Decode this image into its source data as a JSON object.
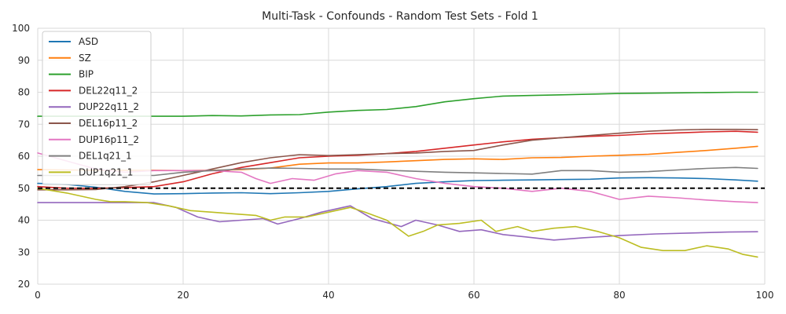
{
  "chart_data": {
    "type": "line",
    "title": "Multi-Task - Confounds - Random Test Sets - Fold 1",
    "xlabel": "",
    "ylabel": "",
    "xlim": [
      0,
      100
    ],
    "ylim": [
      20,
      100
    ],
    "xticks": [
      "0",
      "20",
      "40",
      "60",
      "80",
      "100"
    ],
    "yticks": [
      "20",
      "30",
      "40",
      "50",
      "60",
      "70",
      "80",
      "90",
      "100"
    ],
    "grid": true,
    "legend_position": "top-left",
    "reference_line": {
      "y": 50,
      "style": "dashed",
      "color": "#000000"
    },
    "series": [
      {
        "name": "ASD",
        "color": "#1f77b4",
        "x": [
          0,
          4,
          8,
          12,
          16,
          20,
          24,
          28,
          32,
          36,
          40,
          44,
          48,
          52,
          56,
          60,
          64,
          68,
          72,
          76,
          80,
          84,
          88,
          92,
          96,
          99
        ],
        "y": [
          51.5,
          51.2,
          50.3,
          49.0,
          48.2,
          48.3,
          48.5,
          48.6,
          48.3,
          48.6,
          49.0,
          49.8,
          50.5,
          51.5,
          52.0,
          52.4,
          52.5,
          52.6,
          52.7,
          52.8,
          53.2,
          53.3,
          53.2,
          53.0,
          52.6,
          52.2
        ]
      },
      {
        "name": "SZ",
        "color": "#ff7f0e",
        "x": [
          0,
          4,
          8,
          12,
          16,
          20,
          24,
          28,
          32,
          36,
          40,
          44,
          48,
          52,
          56,
          60,
          64,
          68,
          72,
          76,
          80,
          84,
          88,
          92,
          96,
          99
        ],
        "y": [
          55.8,
          55.7,
          55.6,
          55.6,
          55.6,
          55.5,
          55.6,
          55.8,
          56.3,
          57.5,
          57.9,
          57.9,
          58.2,
          58.6,
          59.0,
          59.2,
          59.0,
          59.5,
          59.6,
          60.0,
          60.3,
          60.6,
          61.2,
          61.8,
          62.5,
          63.1
        ]
      },
      {
        "name": "BIP",
        "color": "#2ca02c",
        "x": [
          0,
          4,
          8,
          12,
          16,
          20,
          24,
          28,
          32,
          36,
          40,
          44,
          48,
          52,
          56,
          60,
          64,
          68,
          72,
          76,
          80,
          84,
          88,
          92,
          96,
          99
        ],
        "y": [
          72.5,
          72.5,
          72.5,
          72.5,
          72.5,
          72.5,
          72.7,
          72.6,
          72.9,
          73.0,
          73.8,
          74.3,
          74.6,
          75.5,
          77.0,
          78.0,
          78.8,
          79.0,
          79.2,
          79.4,
          79.6,
          79.7,
          79.8,
          79.9,
          80.0,
          80.0
        ]
      },
      {
        "name": "DEL22q11_2",
        "color": "#d62728",
        "x": [
          0,
          4,
          8,
          12,
          16,
          20,
          24,
          28,
          32,
          36,
          40,
          44,
          48,
          52,
          56,
          60,
          64,
          68,
          72,
          76,
          80,
          84,
          88,
          92,
          96,
          99
        ],
        "y": [
          50.5,
          50.0,
          50.0,
          50.2,
          50.5,
          52.0,
          54.5,
          56.5,
          58.0,
          59.5,
          60.0,
          60.3,
          60.8,
          61.5,
          62.5,
          63.5,
          64.5,
          65.3,
          65.8,
          66.2,
          66.5,
          67.0,
          67.3,
          67.6,
          67.8,
          67.5
        ]
      },
      {
        "name": "DUP22q11_2",
        "color": "#9467bd",
        "x": [
          0,
          4,
          8,
          12,
          16,
          19,
          22,
          25,
          28,
          31,
          33,
          36,
          39,
          42,
          43,
          46,
          50,
          52,
          55,
          58,
          61,
          64,
          67,
          71,
          75,
          80,
          85,
          90,
          95,
          99
        ],
        "y": [
          45.5,
          45.5,
          45.5,
          45.5,
          45.5,
          44.0,
          41.0,
          39.5,
          40.0,
          40.5,
          38.8,
          40.5,
          42.5,
          44.0,
          44.5,
          40.5,
          38.0,
          40.0,
          38.5,
          36.5,
          37.0,
          35.5,
          34.8,
          33.8,
          34.5,
          35.2,
          35.7,
          36.0,
          36.3,
          36.4
        ]
      },
      {
        "name": "DEL16p11_2",
        "color": "#8c564b",
        "x": [
          0,
          4,
          8,
          12,
          16,
          20,
          24,
          28,
          32,
          36,
          40,
          44,
          48,
          52,
          56,
          60,
          64,
          68,
          72,
          76,
          80,
          84,
          88,
          92,
          96,
          99
        ],
        "y": [
          49.5,
          49.5,
          49.6,
          50.5,
          52.0,
          54.0,
          56.0,
          58.0,
          59.5,
          60.5,
          60.2,
          60.5,
          60.8,
          61.0,
          61.5,
          61.8,
          63.5,
          65.0,
          65.8,
          66.5,
          67.2,
          67.8,
          68.2,
          68.4,
          68.4,
          68.3
        ]
      },
      {
        "name": "DUP16p11_2",
        "color": "#e377c2",
        "x": [
          0,
          4,
          8,
          12,
          16,
          20,
          24,
          28,
          30,
          32,
          35,
          38,
          41,
          44,
          48,
          52,
          56,
          60,
          64,
          68,
          72,
          76,
          80,
          84,
          88,
          92,
          96,
          99
        ],
        "y": [
          61.0,
          58.5,
          56.0,
          55.0,
          55.5,
          55.5,
          55.5,
          55.0,
          53.0,
          51.5,
          53.0,
          52.5,
          54.5,
          55.5,
          55.0,
          53.0,
          51.5,
          50.5,
          50.0,
          49.0,
          50.0,
          49.0,
          46.5,
          47.5,
          47.0,
          46.3,
          45.8,
          45.5
        ]
      },
      {
        "name": "DEL1q21_1",
        "color": "#7f7f7f",
        "x": [
          0,
          4,
          8,
          12,
          16,
          20,
          24,
          28,
          32,
          36,
          40,
          44,
          48,
          52,
          56,
          60,
          64,
          68,
          72,
          76,
          80,
          84,
          88,
          92,
          96,
          99
        ],
        "y": [
          54.0,
          54.0,
          54.0,
          54.0,
          54.0,
          55.0,
          55.5,
          56.0,
          56.3,
          56.2,
          56.0,
          56.0,
          55.6,
          55.3,
          55.0,
          54.8,
          54.6,
          54.4,
          55.5,
          55.5,
          55.0,
          55.2,
          55.7,
          56.2,
          56.5,
          56.2
        ]
      },
      {
        "name": "DUP1q21_1",
        "color": "#bcbd22",
        "x": [
          0,
          4,
          8,
          10,
          12,
          15,
          18,
          21,
          24,
          27,
          30,
          32,
          34,
          37,
          40,
          43,
          45,
          48,
          51,
          53,
          55,
          58,
          61,
          63,
          66,
          68,
          71,
          74,
          77,
          80,
          83,
          86,
          89,
          92,
          95,
          97,
          99
        ],
        "y": [
          50.0,
          48.5,
          46.5,
          45.8,
          45.8,
          45.5,
          44.5,
          43.0,
          42.5,
          42.0,
          41.5,
          40.0,
          41.0,
          41.0,
          42.5,
          44.0,
          42.5,
          40.0,
          35.0,
          36.5,
          38.5,
          39.0,
          40.0,
          36.5,
          38.0,
          36.5,
          37.5,
          38.0,
          36.5,
          34.5,
          31.5,
          30.5,
          30.5,
          32.0,
          31.0,
          29.3,
          28.5
        ]
      }
    ]
  }
}
